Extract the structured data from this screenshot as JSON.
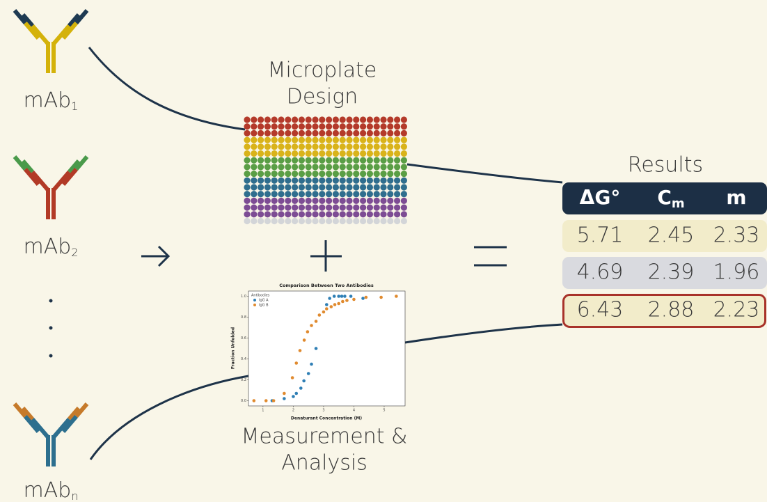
{
  "antibodies": [
    {
      "label": "mAb",
      "subscript": "1"
    },
    {
      "label": "mAb",
      "subscript": "2"
    },
    {
      "label": "mAb",
      "subscript": "n"
    }
  ],
  "microplate": {
    "title": [
      "Microplate",
      "Design"
    ]
  },
  "analysis": {
    "title": [
      "Measurement &",
      "Analysis"
    ]
  },
  "results": {
    "title": "Results",
    "header": [
      {
        "text": "ΔG°"
      },
      {
        "text": "C",
        "subscript": "m"
      },
      {
        "text": "m"
      }
    ],
    "rows": [
      [
        5.71,
        2.45,
        2.33
      ],
      [
        4.69,
        2.39,
        1.96
      ],
      [
        6.43,
        2.88,
        2.23
      ]
    ]
  },
  "chart_data": {
    "type": "scatter",
    "title": "Comparison Between Two Antibodies",
    "x_label": "Denaturant Concentration (M)",
    "y_label": "Fraction Unfolded",
    "legend_title": "Antibodies",
    "legend": "upper left",
    "xlim": [
      0.52,
      5.69
    ],
    "ylim": [
      -0.05,
      1.05
    ],
    "xticks": [
      1,
      2,
      3,
      4,
      5
    ],
    "yticks": [
      {
        "value": 0,
        "label": "0.0"
      },
      0.2,
      0.4,
      0.6,
      0.8,
      {
        "value": 1,
        "label": "1.0"
      }
    ],
    "series": [
      {
        "name": "IgG A",
        "color": "#2f7fb5",
        "x": [
          1.3,
          1.7,
          2.0,
          2.1,
          2.25,
          2.35,
          2.5,
          2.6,
          2.75,
          3.1,
          3.2,
          3.35,
          3.5,
          3.6,
          3.7,
          3.9,
          4.3
        ],
        "values": [
          0.0,
          0.02,
          0.04,
          0.07,
          0.12,
          0.19,
          0.26,
          0.35,
          0.5,
          0.92,
          0.98,
          1.0,
          1.0,
          1.0,
          1.0,
          1.0,
          0.98
        ]
      },
      {
        "name": "IgG B",
        "color": "#e08a2e",
        "x": [
          0.7,
          1.1,
          1.35,
          1.7,
          1.97,
          2.1,
          2.22,
          2.36,
          2.47,
          2.6,
          2.75,
          2.86,
          3.0,
          3.1,
          3.25,
          3.37,
          3.5,
          3.63,
          3.77,
          4.0,
          4.4,
          4.9,
          5.4
        ],
        "values": [
          0.0,
          0.0,
          0.0,
          0.07,
          0.22,
          0.36,
          0.48,
          0.58,
          0.66,
          0.72,
          0.76,
          0.82,
          0.85,
          0.88,
          0.9,
          0.92,
          0.93,
          0.95,
          0.96,
          0.97,
          0.99,
          0.99,
          1.0
        ]
      }
    ]
  }
}
